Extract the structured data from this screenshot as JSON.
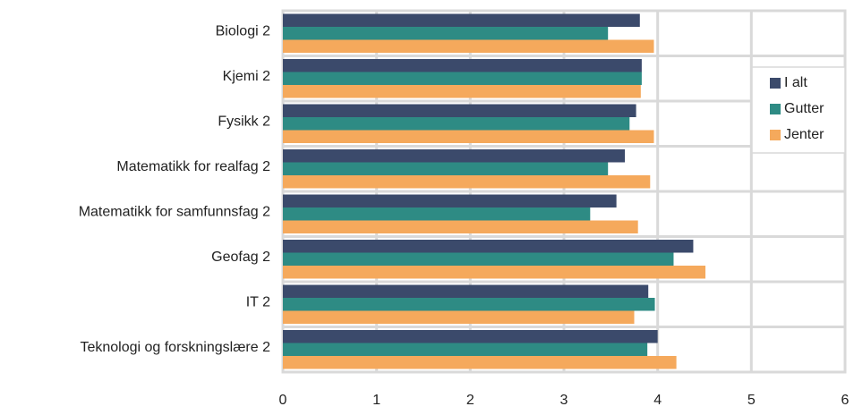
{
  "chart_data": {
    "type": "hbar",
    "categories": [
      "Biologi 2",
      "Kjemi 2",
      "Fysikk 2",
      "Matematikk for realfag 2",
      "Matematikk for samfunnsfag 2",
      "Geofag 2",
      "IT 2",
      "Teknologi og forskningslære 2"
    ],
    "series": [
      {
        "name": "I alt",
        "color": "#3b4a6b",
        "values": [
          3.81,
          3.83,
          3.77,
          3.65,
          3.56,
          4.38,
          3.9,
          4.0
        ]
      },
      {
        "name": "Gutter",
        "color": "#2e8b84",
        "values": [
          3.47,
          3.83,
          3.7,
          3.47,
          3.28,
          4.17,
          3.97,
          3.89
        ]
      },
      {
        "name": "Jenter",
        "color": "#f5a95c",
        "values": [
          3.96,
          3.82,
          3.96,
          3.92,
          3.79,
          4.51,
          3.75,
          4.2
        ]
      }
    ],
    "xlim": [
      0,
      6
    ],
    "xticks": [
      0,
      1,
      2,
      3,
      4,
      5,
      6
    ],
    "grid": true,
    "legend": "right"
  }
}
